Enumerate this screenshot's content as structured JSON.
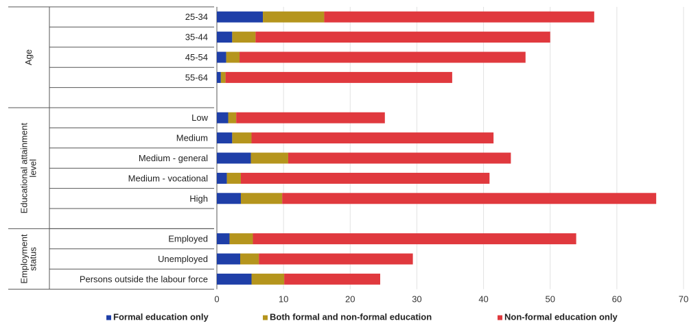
{
  "chart_data": {
    "type": "bar",
    "orientation": "horizontal",
    "stacked": true,
    "groups": [
      {
        "label": "Age",
        "categories": [
          "25-34",
          "35-44",
          "45-54",
          "55-64"
        ]
      },
      {
        "label": "Educational attainment level",
        "categories": [
          "Low",
          "Medium",
          "Medium - general",
          "Medium - vocational",
          "High"
        ]
      },
      {
        "label": "Employment status",
        "categories": [
          "Employed",
          "Unemployed",
          "Persons outside the labour force"
        ]
      }
    ],
    "categories": [
      "25-34",
      "35-44",
      "45-54",
      "55-64",
      "Low",
      "Medium",
      "Medium - general",
      "Medium - vocational",
      "High",
      "Employed",
      "Unemployed",
      "Persons outside the labour force"
    ],
    "series": [
      {
        "name": "Formal education only",
        "color": "#1f3fa8",
        "values": [
          6.9,
          2.3,
          1.4,
          0.6,
          1.7,
          2.3,
          5.1,
          1.5,
          3.6,
          1.9,
          3.5,
          5.2
        ]
      },
      {
        "name": "Both formal and non-formal education",
        "color": "#b5951d",
        "values": [
          9.2,
          3.5,
          2.0,
          0.7,
          1.2,
          2.9,
          5.6,
          2.1,
          6.2,
          3.5,
          2.8,
          4.9
        ]
      },
      {
        "name": "Non-formal education only",
        "color": "#e0393e",
        "values": [
          40.5,
          44.2,
          42.9,
          34.0,
          22.3,
          36.3,
          33.4,
          37.3,
          56.1,
          48.5,
          23.1,
          14.4
        ]
      }
    ],
    "xlim": [
      0,
      70
    ],
    "xticks": [
      0,
      10,
      20,
      30,
      40,
      50,
      60,
      70
    ],
    "grid": true,
    "legend_position": "bottom"
  }
}
